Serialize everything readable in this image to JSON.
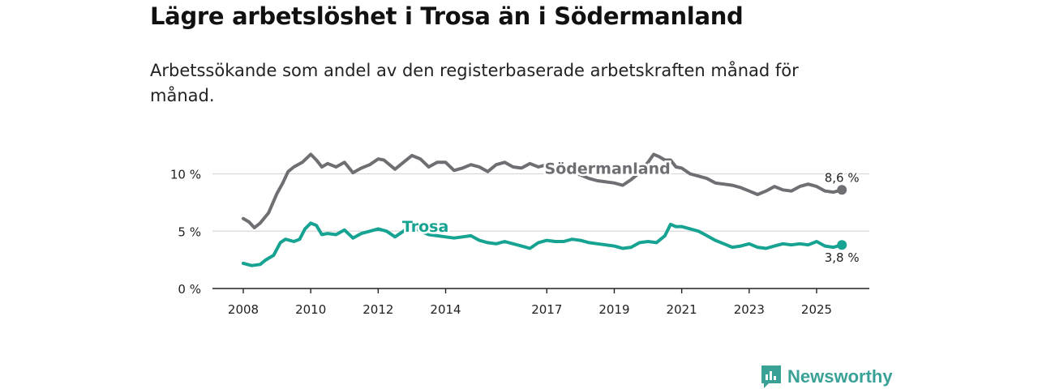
{
  "title": "Lägre arbetslöshet i Trosa än i Södermanland",
  "subtitle": "Arbetssökande som andel av den registerbaserade arbetskraften månad för månad.",
  "brand": {
    "name": "Newsworthy",
    "color": "#3aa197",
    "icon": "newsworthy-chart-icon"
  },
  "chart_data": {
    "type": "line",
    "title": "Lägre arbetslöshet i Trosa än i Södermanland",
    "xlabel": "",
    "ylabel": "",
    "xlim": [
      2007.9,
      2025.95
    ],
    "ylim": [
      0,
      12
    ],
    "grid": true,
    "y_ticks": [
      {
        "value": 0,
        "label": "0 %"
      },
      {
        "value": 5,
        "label": "5 %"
      },
      {
        "value": 10,
        "label": "10 %"
      }
    ],
    "x_ticks": [
      {
        "value": 2008,
        "label": "2008"
      },
      {
        "value": 2010,
        "label": "2010"
      },
      {
        "value": 2012,
        "label": "2012"
      },
      {
        "value": 2014,
        "label": "2014"
      },
      {
        "value": 2017,
        "label": "2017"
      },
      {
        "value": 2019,
        "label": "2019"
      },
      {
        "value": 2021,
        "label": "2021"
      },
      {
        "value": 2023,
        "label": "2023"
      },
      {
        "value": 2025,
        "label": "2025"
      }
    ],
    "series": [
      {
        "name": "Södermanland",
        "color": "#6e6e73",
        "label": {
          "text": "Södermanland",
          "x": 2018.8,
          "y": 10.0
        },
        "end_label": "8,6 %",
        "end_label_pos": "above",
        "x": [
          2008.0,
          2008.17,
          2008.33,
          2008.5,
          2008.75,
          2009.0,
          2009.17,
          2009.33,
          2009.5,
          2009.75,
          2010.0,
          2010.17,
          2010.33,
          2010.5,
          2010.75,
          2011.0,
          2011.25,
          2011.5,
          2011.75,
          2012.0,
          2012.17,
          2012.5,
          2012.75,
          2013.0,
          2013.25,
          2013.5,
          2013.75,
          2014.0,
          2014.25,
          2014.5,
          2014.75,
          2015.0,
          2015.25,
          2015.5,
          2015.75,
          2016.0,
          2016.25,
          2016.5,
          2016.75,
          2017.0,
          2017.25,
          2017.5,
          2017.75,
          2018.0,
          2018.25,
          2018.5,
          2018.75,
          2019.0,
          2019.25,
          2019.5,
          2019.75,
          2020.0,
          2020.17,
          2020.33,
          2020.5,
          2020.67,
          2020.83,
          2021.0,
          2021.25,
          2021.5,
          2021.75,
          2022.0,
          2022.25,
          2022.5,
          2022.75,
          2023.0,
          2023.25,
          2023.5,
          2023.75,
          2024.0,
          2024.25,
          2024.5,
          2024.75,
          2025.0,
          2025.25,
          2025.5,
          2025.75
        ],
        "values": [
          6.1,
          5.8,
          5.3,
          5.7,
          6.6,
          8.3,
          9.2,
          10.2,
          10.6,
          11.0,
          11.7,
          11.2,
          10.6,
          10.9,
          10.6,
          11.0,
          10.1,
          10.5,
          10.8,
          11.3,
          11.2,
          10.4,
          11.0,
          11.6,
          11.3,
          10.6,
          11.0,
          11.0,
          10.3,
          10.5,
          10.8,
          10.6,
          10.2,
          10.8,
          11.0,
          10.6,
          10.5,
          10.9,
          10.6,
          10.8,
          10.2,
          10.3,
          10.2,
          9.9,
          9.6,
          9.4,
          9.3,
          9.2,
          9.0,
          9.5,
          10.1,
          11.0,
          11.7,
          11.5,
          11.2,
          11.2,
          10.6,
          10.5,
          10.0,
          9.8,
          9.6,
          9.2,
          9.1,
          9.0,
          8.8,
          8.5,
          8.2,
          8.5,
          8.9,
          8.6,
          8.5,
          8.9,
          9.1,
          8.9,
          8.5,
          8.4,
          8.6
        ]
      },
      {
        "name": "Trosa",
        "color": "#17a392",
        "label": {
          "text": "Trosa",
          "x": 2013.4,
          "y": 4.95
        },
        "end_label": "3,8 %",
        "end_label_pos": "below",
        "x": [
          2008.0,
          2008.25,
          2008.5,
          2008.67,
          2008.9,
          2009.1,
          2009.25,
          2009.5,
          2009.67,
          2009.83,
          2010.0,
          2010.17,
          2010.33,
          2010.5,
          2010.75,
          2011.0,
          2011.25,
          2011.5,
          2011.75,
          2012.0,
          2012.25,
          2012.5,
          2012.75,
          2013.0,
          2013.25,
          2013.5,
          2013.75,
          2014.0,
          2014.25,
          2014.5,
          2014.75,
          2015.0,
          2015.25,
          2015.5,
          2015.75,
          2016.0,
          2016.25,
          2016.5,
          2016.75,
          2017.0,
          2017.25,
          2017.5,
          2017.75,
          2018.0,
          2018.25,
          2018.5,
          2018.75,
          2019.0,
          2019.25,
          2019.5,
          2019.75,
          2020.0,
          2020.25,
          2020.5,
          2020.67,
          2020.83,
          2021.0,
          2021.25,
          2021.5,
          2021.75,
          2022.0,
          2022.25,
          2022.5,
          2022.75,
          2023.0,
          2023.25,
          2023.5,
          2023.75,
          2024.0,
          2024.25,
          2024.5,
          2024.75,
          2025.0,
          2025.25,
          2025.5,
          2025.75
        ],
        "values": [
          2.2,
          2.0,
          2.1,
          2.5,
          2.9,
          4.0,
          4.3,
          4.1,
          4.3,
          5.2,
          5.7,
          5.5,
          4.7,
          4.8,
          4.7,
          5.1,
          4.4,
          4.8,
          5.0,
          5.2,
          5.0,
          4.5,
          5.0,
          5.6,
          5.0,
          4.7,
          4.6,
          4.5,
          4.4,
          4.5,
          4.6,
          4.2,
          4.0,
          3.9,
          4.1,
          3.9,
          3.7,
          3.5,
          4.0,
          4.2,
          4.1,
          4.1,
          4.3,
          4.2,
          4.0,
          3.9,
          3.8,
          3.7,
          3.5,
          3.6,
          4.0,
          4.1,
          4.0,
          4.6,
          5.6,
          5.4,
          5.4,
          5.2,
          5.0,
          4.6,
          4.2,
          3.9,
          3.6,
          3.7,
          3.9,
          3.6,
          3.5,
          3.7,
          3.9,
          3.8,
          3.9,
          3.8,
          4.1,
          3.7,
          3.6,
          3.8
        ]
      }
    ]
  }
}
